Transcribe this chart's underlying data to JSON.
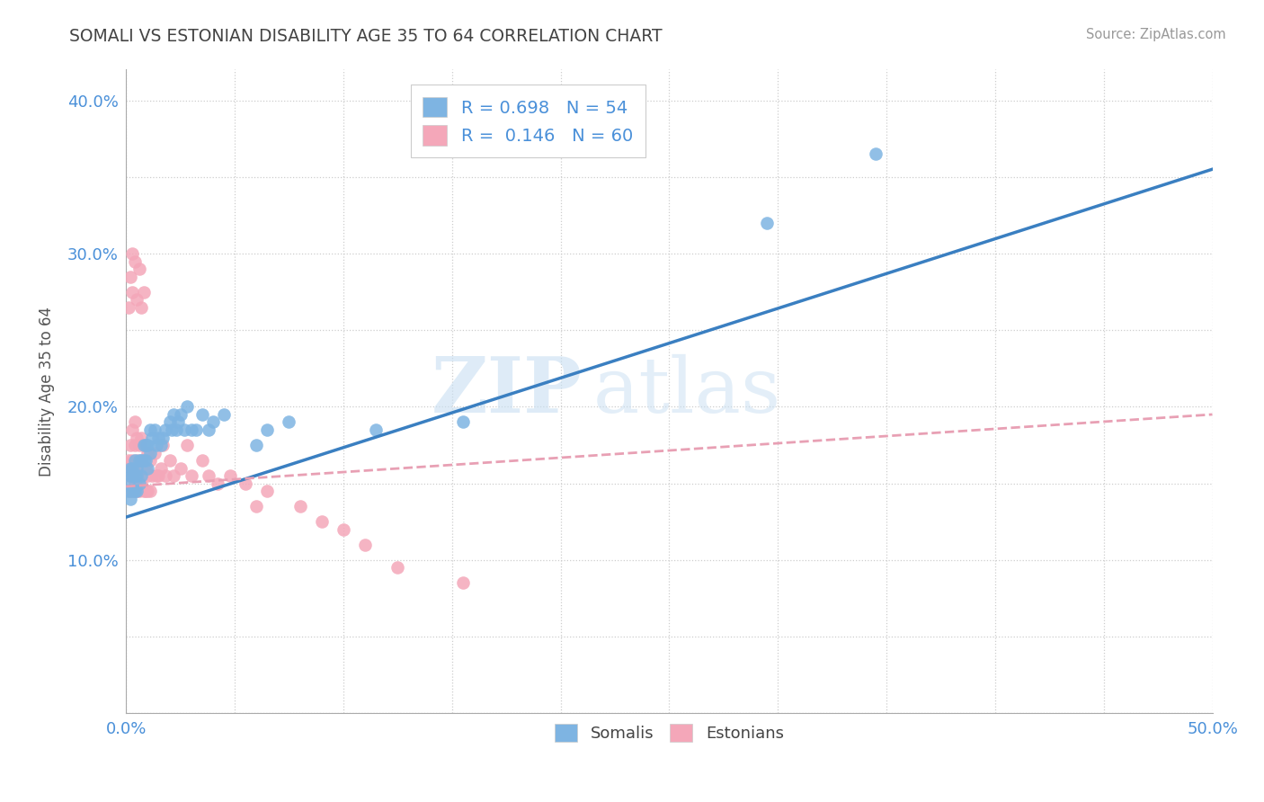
{
  "title": "SOMALI VS ESTONIAN DISABILITY AGE 35 TO 64 CORRELATION CHART",
  "source": "Source: ZipAtlas.com",
  "xlabel": "",
  "ylabel": "Disability Age 35 to 64",
  "xlim": [
    0.0,
    0.5
  ],
  "ylim": [
    0.0,
    0.42
  ],
  "xticks": [
    0.0,
    0.05,
    0.1,
    0.15,
    0.2,
    0.25,
    0.3,
    0.35,
    0.4,
    0.45,
    0.5
  ],
  "yticks": [
    0.0,
    0.05,
    0.1,
    0.15,
    0.2,
    0.25,
    0.3,
    0.35,
    0.4
  ],
  "somali_R": 0.698,
  "somali_N": 54,
  "estonian_R": 0.146,
  "estonian_N": 60,
  "somali_color": "#7eb4e2",
  "estonian_color": "#f4a7b9",
  "somali_line_color": "#3a7fc1",
  "estonian_line_color": "#e8a0b4",
  "watermark_zip": "ZIP",
  "watermark_atlas": "atlas",
  "background_color": "#ffffff",
  "somali_x": [
    0.001,
    0.001,
    0.002,
    0.002,
    0.002,
    0.003,
    0.003,
    0.003,
    0.004,
    0.004,
    0.004,
    0.005,
    0.005,
    0.005,
    0.006,
    0.006,
    0.007,
    0.007,
    0.008,
    0.008,
    0.009,
    0.009,
    0.01,
    0.01,
    0.011,
    0.011,
    0.012,
    0.013,
    0.014,
    0.015,
    0.016,
    0.017,
    0.018,
    0.02,
    0.021,
    0.022,
    0.023,
    0.024,
    0.025,
    0.027,
    0.028,
    0.03,
    0.032,
    0.035,
    0.038,
    0.04,
    0.045,
    0.06,
    0.065,
    0.075,
    0.115,
    0.155,
    0.295,
    0.345
  ],
  "somali_y": [
    0.145,
    0.15,
    0.14,
    0.155,
    0.16,
    0.145,
    0.155,
    0.16,
    0.145,
    0.155,
    0.165,
    0.145,
    0.155,
    0.16,
    0.15,
    0.165,
    0.155,
    0.165,
    0.165,
    0.175,
    0.165,
    0.175,
    0.16,
    0.175,
    0.17,
    0.185,
    0.18,
    0.185,
    0.175,
    0.18,
    0.175,
    0.18,
    0.185,
    0.19,
    0.185,
    0.195,
    0.185,
    0.19,
    0.195,
    0.185,
    0.2,
    0.185,
    0.185,
    0.195,
    0.185,
    0.19,
    0.195,
    0.175,
    0.185,
    0.19,
    0.185,
    0.19,
    0.32,
    0.365
  ],
  "estonian_x": [
    0.001,
    0.001,
    0.001,
    0.002,
    0.002,
    0.002,
    0.002,
    0.003,
    0.003,
    0.003,
    0.003,
    0.004,
    0.004,
    0.004,
    0.004,
    0.005,
    0.005,
    0.005,
    0.005,
    0.006,
    0.006,
    0.006,
    0.007,
    0.007,
    0.007,
    0.008,
    0.008,
    0.008,
    0.009,
    0.009,
    0.01,
    0.01,
    0.01,
    0.011,
    0.011,
    0.012,
    0.013,
    0.014,
    0.015,
    0.016,
    0.017,
    0.018,
    0.02,
    0.022,
    0.025,
    0.028,
    0.03,
    0.035,
    0.038,
    0.042,
    0.048,
    0.055,
    0.06,
    0.065,
    0.08,
    0.09,
    0.1,
    0.11,
    0.125,
    0.155
  ],
  "estonian_y": [
    0.145,
    0.155,
    0.165,
    0.145,
    0.155,
    0.16,
    0.175,
    0.145,
    0.155,
    0.165,
    0.185,
    0.15,
    0.16,
    0.175,
    0.19,
    0.145,
    0.155,
    0.165,
    0.18,
    0.145,
    0.16,
    0.175,
    0.15,
    0.165,
    0.18,
    0.145,
    0.16,
    0.175,
    0.145,
    0.16,
    0.145,
    0.155,
    0.17,
    0.145,
    0.165,
    0.155,
    0.17,
    0.155,
    0.155,
    0.16,
    0.175,
    0.155,
    0.165,
    0.155,
    0.16,
    0.175,
    0.155,
    0.165,
    0.155,
    0.15,
    0.155,
    0.15,
    0.135,
    0.145,
    0.135,
    0.125,
    0.12,
    0.11,
    0.095,
    0.085
  ],
  "estonian_high_y": [
    0.265,
    0.285,
    0.3,
    0.275,
    0.295,
    0.27,
    0.29,
    0.265,
    0.275
  ],
  "estonian_high_x": [
    0.001,
    0.002,
    0.003,
    0.003,
    0.004,
    0.005,
    0.006,
    0.007,
    0.008
  ],
  "somali_line_x0": 0.0,
  "somali_line_x1": 0.5,
  "somali_line_y0": 0.128,
  "somali_line_y1": 0.355,
  "estonian_line_x0": 0.0,
  "estonian_line_x1": 0.5,
  "estonian_line_y0": 0.148,
  "estonian_line_y1": 0.195
}
